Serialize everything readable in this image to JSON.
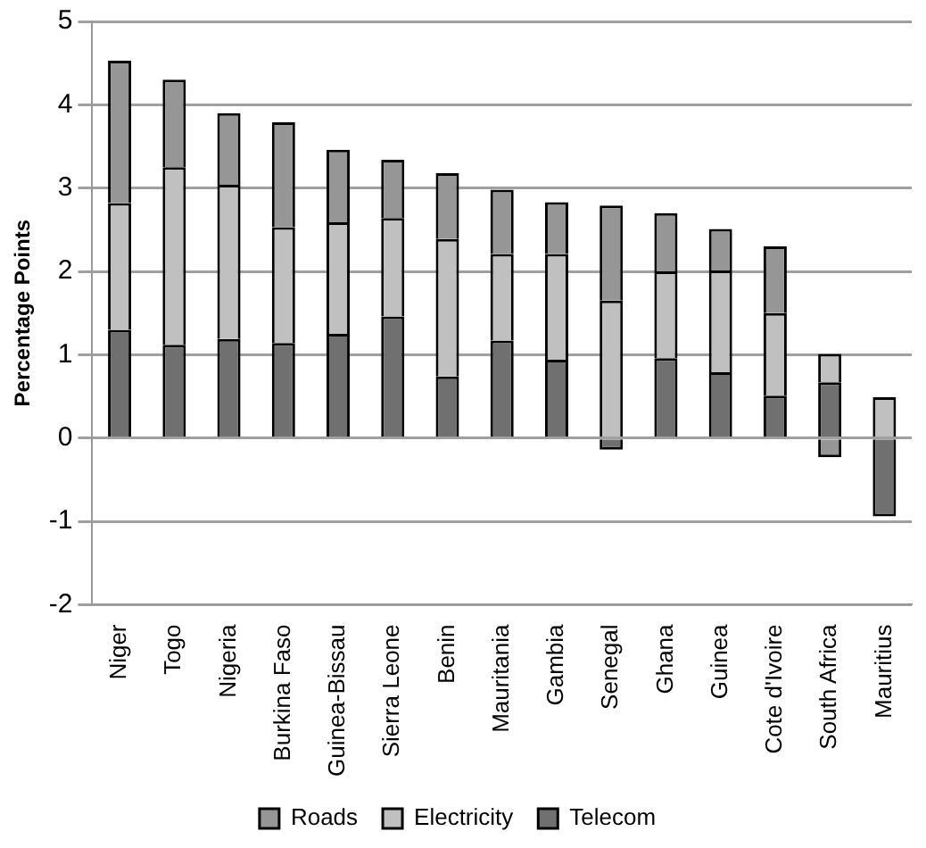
{
  "chart_data": {
    "type": "bar",
    "stacked": true,
    "ylabel": "Percentage Points",
    "categories": [
      "Niger",
      "Togo",
      "Nigeria",
      "Burkina Faso",
      "Guinea-Bissau",
      "Sierra Leone",
      "Benin",
      "Mauritania",
      "Gambia",
      "Senegal",
      "Ghana",
      "Guinea",
      "Cote d'Ivoire",
      "South Africa",
      "Mauritius"
    ],
    "series": [
      {
        "name": "Telecom",
        "color": "#707070",
        "values": [
          1.3,
          1.12,
          1.19,
          1.14,
          1.25,
          1.46,
          0.74,
          1.17,
          0.94,
          -0.14,
          0.96,
          0.79,
          0.51,
          0.67,
          -0.94
        ]
      },
      {
        "name": "Electricity",
        "color": "#c0c0c0",
        "values": [
          1.52,
          2.13,
          1.85,
          1.39,
          1.34,
          1.18,
          1.65,
          1.04,
          1.27,
          1.65,
          1.04,
          1.22,
          0.99,
          0.34,
          0.49
        ]
      },
      {
        "name": "Roads",
        "color": "#969696",
        "values": [
          1.71,
          1.05,
          0.86,
          1.26,
          0.87,
          0.7,
          0.79,
          0.77,
          0.62,
          1.14,
          0.7,
          0.5,
          0.8,
          -0.23,
          null
        ]
      }
    ],
    "ylim": [
      -2,
      5
    ],
    "yticks": [
      -2,
      -1,
      0,
      1,
      2,
      3,
      4,
      5
    ],
    "grid": "y",
    "legend": "bottom"
  }
}
